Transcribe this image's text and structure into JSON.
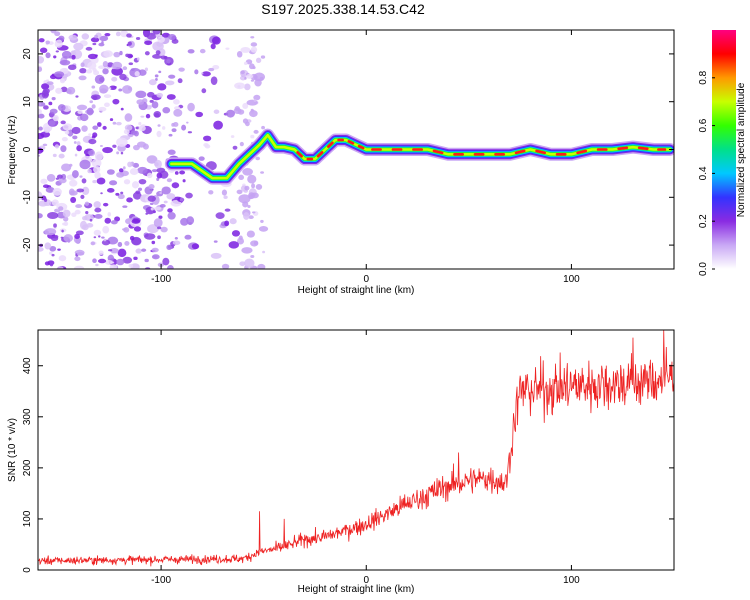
{
  "title": "S197.2025.338.14.53.C42",
  "chart_data": [
    {
      "type": "heatmap",
      "xlabel": "Height of straight line (km)",
      "ylabel": "Frequency (Hz)",
      "xlim": [
        -160,
        150
      ],
      "ylim": [
        -25,
        25
      ],
      "xticks": [
        -100,
        0,
        100
      ],
      "yticks": [
        -20,
        -10,
        0,
        10,
        20
      ],
      "noise_region_x": [
        -160,
        -50
      ],
      "ridge": {
        "x": [
          -95,
          -85,
          -75,
          -68,
          -62,
          -57,
          -52,
          -48,
          -44,
          -40,
          -35,
          -30,
          -25,
          -20,
          -15,
          -10,
          -5,
          0,
          10,
          20,
          30,
          40,
          50,
          60,
          70,
          80,
          90,
          100,
          110,
          120,
          130,
          140,
          148
        ],
        "freq": [
          -3,
          -3,
          -6,
          -6,
          -3,
          -1,
          1,
          3,
          0.5,
          0.5,
          0,
          -2,
          -2,
          0,
          2,
          2,
          1,
          0,
          0,
          0,
          0,
          -1,
          -1,
          -1,
          -1,
          0,
          -1,
          -1,
          0,
          0,
          0.5,
          0,
          0
        ]
      },
      "colorbar": {
        "label": "Normalized spectral amplitude",
        "range": [
          0,
          1
        ],
        "ticks": [
          0.0,
          0.2,
          0.4,
          0.6,
          0.8
        ],
        "colors": [
          "#ffffff",
          "#c9a8f5",
          "#8a2be2",
          "#3333ff",
          "#00c8ff",
          "#00e08a",
          "#33ff00",
          "#c8ff00",
          "#ff9900",
          "#ff0000",
          "#ff0080"
        ]
      }
    },
    {
      "type": "line",
      "xlabel": "Height of straight line (km)",
      "ylabel": "SNR (10 * v/v)",
      "xlim": [
        -160,
        150
      ],
      "ylim": [
        0,
        470
      ],
      "xticks": [
        -100,
        0,
        100
      ],
      "yticks": [
        0,
        100,
        200,
        300,
        400
      ],
      "color": "#ee2222",
      "trend": {
        "x": [
          -160,
          -60,
          -52,
          -40,
          -30,
          -20,
          0,
          20,
          40,
          50,
          60,
          68,
          70,
          72,
          75,
          100,
          120,
          140,
          150
        ],
        "y": [
          18,
          22,
          35,
          45,
          60,
          65,
          90,
          130,
          165,
          175,
          180,
          170,
          220,
          290,
          350,
          360,
          365,
          370,
          380
        ]
      },
      "spikes": [
        {
          "x": -52,
          "y": 115
        },
        {
          "x": -40,
          "y": 100
        },
        {
          "x": 45,
          "y": 230
        },
        {
          "x": 130,
          "y": 455
        },
        {
          "x": 145,
          "y": 470
        }
      ]
    }
  ]
}
